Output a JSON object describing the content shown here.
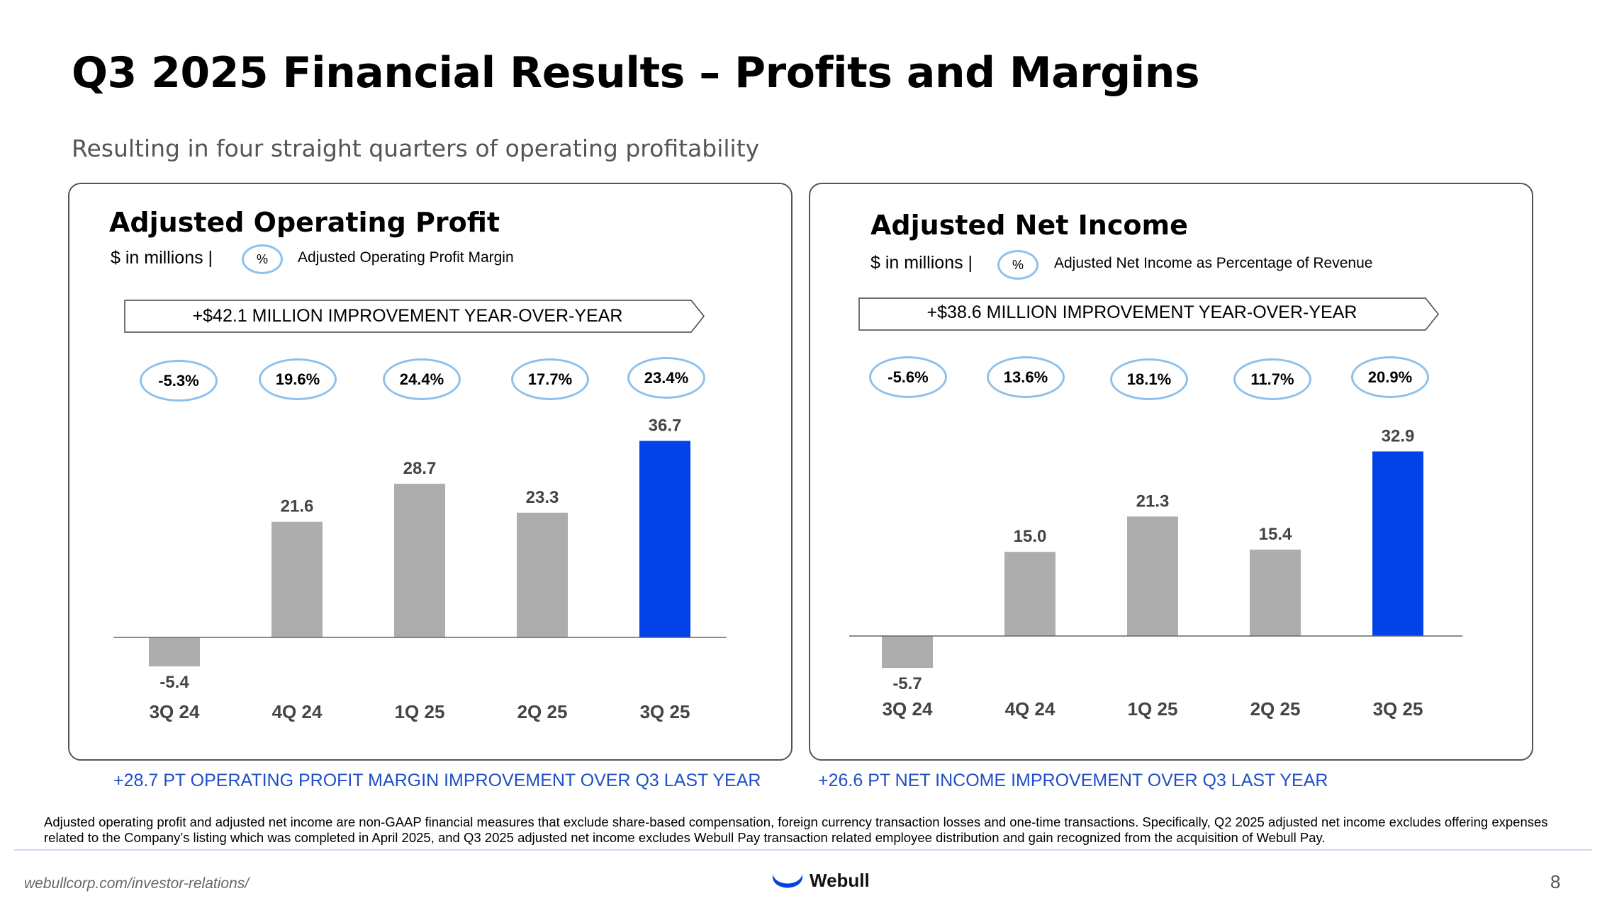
{
  "title": "Q3 2025 Financial Results – Profits and Margins",
  "subtitle": "Resulting in four straight quarters of operating profitability",
  "colors": {
    "gray_bar": "#adadad",
    "highlight_bar": "#0342e8",
    "oval_border": "#8cc1ee",
    "note_blue": "#1f4fc5"
  },
  "left_panel": {
    "title": "Adjusted Operating Profit",
    "units": "$ in millions  |",
    "legend_symbol": "%",
    "legend_label": "Adjusted Operating Profit Margin",
    "banner": "+$42.1 MILLION IMPROVEMENT YEAR-OVER-YEAR",
    "margins": [
      "-5.3%",
      "19.6%",
      "24.4%",
      "17.7%",
      "23.4%"
    ],
    "bottom_note": "+28.7 PT OPERATING PROFIT MARGIN IMPROVEMENT OVER Q3 LAST YEAR"
  },
  "right_panel": {
    "title": "Adjusted Net Income",
    "units": "$ in millions  |",
    "legend_symbol": "%",
    "legend_label": "Adjusted Net Income as Percentage of Revenue",
    "banner": "+$38.6 MILLION IMPROVEMENT YEAR-OVER-YEAR",
    "margins": [
      "-5.6%",
      "13.6%",
      "18.1%",
      "11.7%",
      "20.9%"
    ],
    "bottom_note": "+26.6 PT NET INCOME IMPROVEMENT OVER Q3 LAST YEAR"
  },
  "chart_data": [
    {
      "type": "bar",
      "title": "Adjusted Operating Profit",
      "ylabel": "$ in millions",
      "categories": [
        "3Q 24",
        "4Q 24",
        "1Q 25",
        "2Q 25",
        "3Q 25"
      ],
      "values": [
        -5.4,
        21.6,
        28.7,
        23.3,
        36.7
      ],
      "value_labels": [
        "-5.4",
        "21.6",
        "28.7",
        "23.3",
        "36.7"
      ],
      "highlight_index": 4,
      "ylim": [
        -5.4,
        36.7
      ]
    },
    {
      "type": "bar",
      "title": "Adjusted Net Income",
      "ylabel": "$ in millions",
      "categories": [
        "3Q 24",
        "4Q 24",
        "1Q 25",
        "2Q 25",
        "3Q 25"
      ],
      "values": [
        -5.7,
        15.0,
        21.3,
        15.4,
        32.9
      ],
      "value_labels": [
        "-5.7",
        "15.0",
        "21.3",
        "15.4",
        "32.9"
      ],
      "highlight_index": 4,
      "ylim": [
        -5.7,
        32.9
      ]
    }
  ],
  "footnote": "Adjusted operating profit and adjusted net income are non-GAAP financial measures that exclude share-based compensation, foreign currency transaction losses and one-time transactions. Specifically, Q2 2025 adjusted net income excludes offering expenses related to the Company’s listing which was completed in April 2025, and Q3 2025 adjusted net income excludes Webull Pay transaction related employee distribution and gain recognized from the acquisition of Webull Pay.",
  "footer": {
    "url": "webullcorp.com/investor-relations/",
    "logo_text": "Webull",
    "page_number": "8"
  }
}
